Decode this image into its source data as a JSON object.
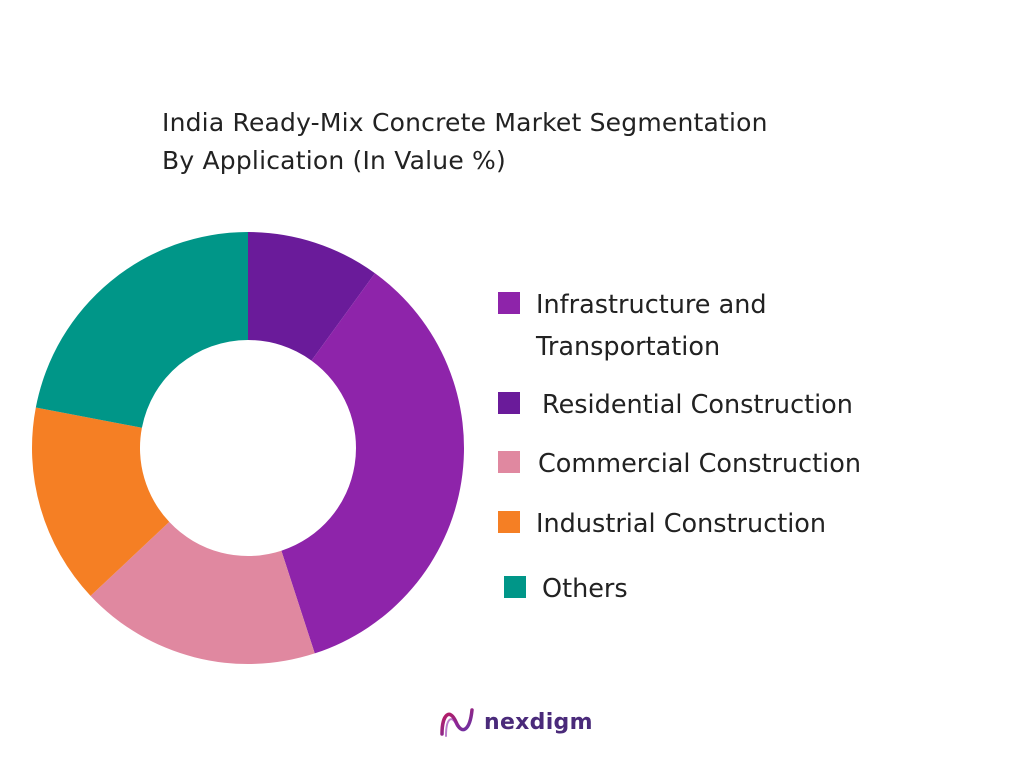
{
  "chart_data": {
    "type": "pie",
    "style": "donut",
    "title_lines": [
      "India Ready-Mix Concrete Market  Segmentation",
      "By Application (In Value %)"
    ],
    "unit": "%",
    "categories": [
      "Residential Construction",
      "Infrastructure and Transportation",
      "Commercial Construction",
      "Industrial Construction",
      "Others"
    ],
    "values": [
      10,
      35,
      18,
      15,
      22
    ],
    "colors": [
      "#6a1b9a",
      "#8e24aa",
      "#e088a0",
      "#f57f24",
      "#009688"
    ],
    "legend": {
      "placement": "right",
      "entries": [
        {
          "label": "Infrastructure and Transportation",
          "color": "#8e24aa"
        },
        {
          "label": "Residential Construction",
          "color": "#6a1b9a"
        },
        {
          "label": "Commercial Construction",
          "color": "#e088a0"
        },
        {
          "label": "Industrial Construction",
          "color": "#f57f24"
        },
        {
          "label": "Others",
          "color": "#009688"
        }
      ]
    }
  },
  "brand": {
    "name": "nexdigm",
    "icon": "nexdigm-logo-icon",
    "color": "#4a2a7a"
  }
}
